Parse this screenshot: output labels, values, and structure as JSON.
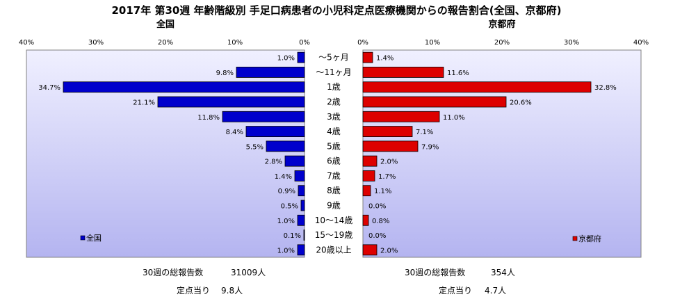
{
  "chart_data": {
    "type": "bar",
    "title": "2017年 第30週 年齢階級別 手足口病患者の小児科定点医療機関からの報告割合(全国、京都府)",
    "categories": [
      "～5ヶ月",
      "～11ヶ月",
      "1歳",
      "2歳",
      "3歳",
      "4歳",
      "5歳",
      "6歳",
      "7歳",
      "8歳",
      "9歳",
      "10～14歳",
      "15～19歳",
      "20歳以上"
    ],
    "xlim": [
      0,
      40
    ],
    "x_ticks": [
      "0%",
      "10%",
      "20%",
      "30%",
      "40%"
    ],
    "grid": false,
    "series": [
      {
        "name": "全国",
        "panel": "left",
        "color": "#0000cc",
        "values": [
          1.0,
          9.8,
          34.7,
          21.1,
          11.8,
          8.4,
          5.5,
          2.8,
          1.4,
          0.9,
          0.5,
          1.0,
          0.1,
          1.0
        ],
        "labels": [
          "1.0%",
          "9.8%",
          "34.7%",
          "21.1%",
          "11.8%",
          "8.4%",
          "5.5%",
          "2.8%",
          "1.4%",
          "0.9%",
          "0.5%",
          "1.0%",
          "0.1%",
          "1.0%"
        ]
      },
      {
        "name": "京都府",
        "panel": "right",
        "color": "#dd0000",
        "values": [
          1.4,
          11.6,
          32.8,
          20.6,
          11.0,
          7.1,
          7.9,
          2.0,
          1.7,
          1.1,
          0.0,
          0.8,
          0.0,
          2.0
        ],
        "labels": [
          "1.4%",
          "11.6%",
          "32.8%",
          "20.6%",
          "11.0%",
          "7.1%",
          "7.9%",
          "2.0%",
          "1.7%",
          "1.1%",
          "0.0%",
          "0.8%",
          "0.0%",
          "2.0%"
        ]
      }
    ],
    "panel_titles": {
      "left": "全国",
      "right": "京都府"
    },
    "legend_placement": "bottom-inside"
  },
  "summary": {
    "left": {
      "reports_label": "30週の総報告数",
      "reports_value": "31009人",
      "per_site_label": "定点当り",
      "per_site_value": "9.8人"
    },
    "right": {
      "reports_label": "30週の総報告数",
      "reports_value": "354人",
      "per_site_label": "定点当り",
      "per_site_value": "4.7人"
    }
  },
  "colors": {
    "plot_bg_top": "#f0f0ff",
    "plot_bg_bottom": "#b4b4f0"
  }
}
